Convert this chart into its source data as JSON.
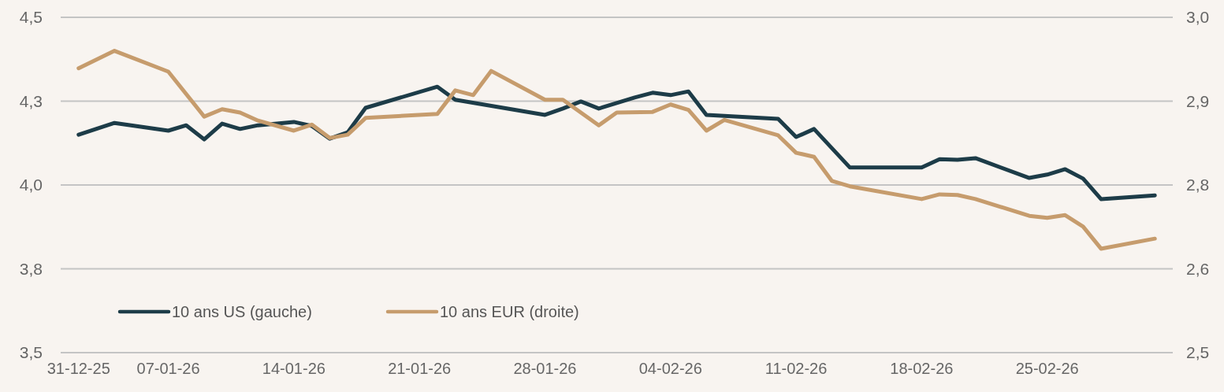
{
  "chart_data": {
    "type": "line",
    "xlim": [
      "--01-01",
      "--03-04"
    ],
    "xticks": [
      {
        "value": "--01-02",
        "label": "31-12-25"
      },
      {
        "value": "--01-07",
        "label": "07-01-26"
      },
      {
        "value": "--01-14",
        "label": "14-01-26"
      },
      {
        "value": "--01-21",
        "label": "21-01-26"
      },
      {
        "value": "--01-28",
        "label": "28-01-26"
      },
      {
        "value": "--02-04",
        "label": "04-02-26"
      },
      {
        "value": "--02-11",
        "label": "11-02-26"
      },
      {
        "value": "--02-18",
        "label": "18-02-26"
      },
      {
        "value": "--02-25",
        "label": "25-02-26"
      }
    ],
    "ylim": [
      3.5,
      4.5
    ],
    "yticks": [
      {
        "value": 3.5,
        "label": "3,5"
      },
      {
        "value": 3.75,
        "label": "3,8"
      },
      {
        "value": 4.0,
        "label": "4,0"
      },
      {
        "value": 4.25,
        "label": "4,3"
      },
      {
        "value": 4.5,
        "label": "4,5"
      }
    ],
    "y2lim": [
      2.5,
      3.0
    ],
    "y2ticks": [
      {
        "value": 2.5,
        "label": "2,5"
      },
      {
        "value": 2.625,
        "label": "2,6"
      },
      {
        "value": 2.75,
        "label": "2,8"
      },
      {
        "value": 2.875,
        "label": "2,9"
      },
      {
        "value": 3.0,
        "label": "3,0"
      }
    ],
    "grid": "y",
    "legend": "bottom left",
    "line_style": "solid",
    "series": [
      {
        "name": "10 ans US (gauche)",
        "color": "#1d3c48",
        "x": [
          "--01-02",
          "--01-04",
          "--01-07",
          "--01-08",
          "--01-09",
          "--01-10",
          "--01-11",
          "--01-12",
          "--01-14",
          "--01-15",
          "--01-16",
          "--01-17",
          "--01-18",
          "--01-22",
          "--01-23",
          "--01-28",
          "--01-29",
          "--01-30",
          "--01-31",
          "--02-02",
          "--02-03",
          "--02-04",
          "--02-05",
          "--02-06",
          "--02-10",
          "--02-11",
          "--02-12",
          "--02-14",
          "--02-18",
          "--02-19",
          "--02-20",
          "--02-21",
          "--02-24",
          "--02-25",
          "--02-26",
          "--02-27",
          "--02-28",
          "--03-03"
        ],
        "values": [
          4.15,
          4.185,
          4.162,
          4.178,
          4.136,
          4.183,
          4.167,
          4.178,
          4.188,
          4.176,
          4.138,
          4.157,
          4.23,
          4.293,
          4.254,
          4.209,
          4.228,
          4.249,
          4.228,
          4.261,
          4.275,
          4.268,
          4.279,
          4.209,
          4.197,
          4.143,
          4.167,
          4.052,
          4.052,
          4.077,
          4.075,
          4.08,
          4.021,
          4.031,
          4.047,
          4.019,
          3.958,
          3.969
        ]
      },
      {
        "name": "10 ans EUR (droite)",
        "color": "#c69c6d",
        "axis": "y2",
        "x": [
          "--01-02",
          "--01-04",
          "--01-07",
          "--01-09",
          "--01-10",
          "--01-11",
          "--01-12",
          "--01-14",
          "--01-15",
          "--01-16",
          "--01-17",
          "--01-18",
          "--01-22",
          "--01-23",
          "--01-24",
          "--01-25",
          "--01-28",
          "--01-29",
          "--01-31",
          "--02-01",
          "--02-03",
          "--02-04",
          "--02-05",
          "--02-06",
          "--02-07",
          "--02-10",
          "--02-11",
          "--02-12",
          "--02-13",
          "--02-14",
          "--02-18",
          "--02-19",
          "--02-20",
          "--02-21",
          "--02-24",
          "--02-25",
          "--02-26",
          "--02-27",
          "--02-28",
          "--03-03"
        ],
        "values": [
          2.924,
          2.95,
          2.919,
          2.852,
          2.863,
          2.858,
          2.846,
          2.831,
          2.84,
          2.82,
          2.825,
          2.85,
          2.856,
          2.891,
          2.884,
          2.92,
          2.877,
          2.877,
          2.839,
          2.858,
          2.859,
          2.87,
          2.862,
          2.831,
          2.847,
          2.824,
          2.798,
          2.792,
          2.756,
          2.748,
          2.729,
          2.736,
          2.735,
          2.729,
          2.704,
          2.701,
          2.705,
          2.688,
          2.655,
          2.67
        ]
      }
    ]
  }
}
